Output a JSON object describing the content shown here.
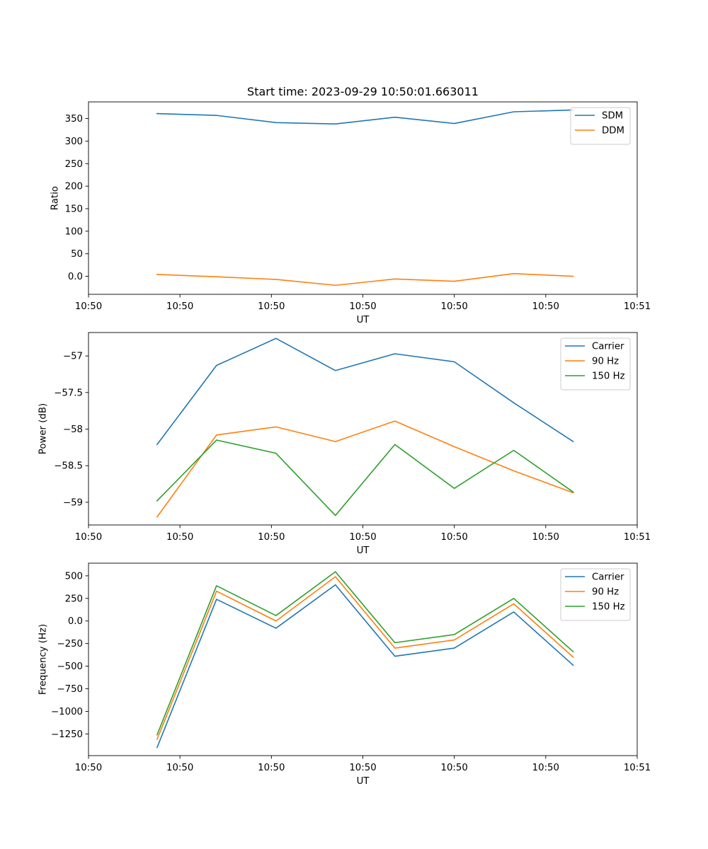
{
  "figure": {
    "title": "Start time: 2023-09-29 10:50:01.663011",
    "background": "#ffffff"
  },
  "chart_data": [
    {
      "type": "line",
      "title": "Start time: 2023-09-29 10:50:01.663011",
      "xlabel": "UT",
      "ylabel": "Ratio",
      "x_tick_labels": [
        "10:50",
        "10:50",
        "10:50",
        "10:50",
        "10:50",
        "10:50",
        "10:51"
      ],
      "x": [
        0.75,
        1.4,
        2.05,
        2.7,
        3.35,
        4.0,
        4.65,
        5.3
      ],
      "xlim": [
        0,
        6
      ],
      "ylim": [
        -40,
        387
      ],
      "yticks": [
        0,
        50,
        100,
        150,
        200,
        250,
        300,
        350
      ],
      "legend_position": "top-right",
      "series": [
        {
          "name": "SDM",
          "color": "#1f77b4",
          "values": [
            361,
            357,
            341,
            338,
            353,
            339,
            365,
            369
          ]
        },
        {
          "name": "DDM",
          "color": "#ff7f0e",
          "values": [
            4,
            -1,
            -7,
            -20,
            -6,
            -11,
            6,
            0
          ]
        }
      ]
    },
    {
      "type": "line",
      "xlabel": "UT",
      "ylabel": "Power (dB)",
      "x_tick_labels": [
        "10:50",
        "10:50",
        "10:50",
        "10:50",
        "10:50",
        "10:50",
        "10:51"
      ],
      "x": [
        0.75,
        1.4,
        2.05,
        2.7,
        3.35,
        4.0,
        4.65,
        5.3
      ],
      "xlim": [
        0,
        6
      ],
      "ylim": [
        -59.31,
        -56.68
      ],
      "yticks": [
        -59.0,
        -58.5,
        -58.0,
        -57.5,
        -57.0
      ],
      "legend_position": "top-right",
      "series": [
        {
          "name": "Carrier",
          "color": "#1f77b4",
          "values": [
            -58.21,
            -57.13,
            -56.76,
            -57.2,
            -56.97,
            -57.08,
            -57.64,
            -58.17
          ]
        },
        {
          "name": "90 Hz",
          "color": "#ff7f0e",
          "values": [
            -59.2,
            -58.08,
            -57.97,
            -58.17,
            -57.89,
            -58.24,
            -58.57,
            -58.87
          ]
        },
        {
          "name": "150 Hz",
          "color": "#2ca02c",
          "values": [
            -58.98,
            -58.15,
            -58.33,
            -59.18,
            -58.21,
            -58.81,
            -58.29,
            -58.86
          ]
        }
      ]
    },
    {
      "type": "line",
      "xlabel": "UT",
      "ylabel": "Frequency (Hz)",
      "x_tick_labels": [
        "10:50",
        "10:50",
        "10:50",
        "10:50",
        "10:50",
        "10:50",
        "10:51"
      ],
      "x": [
        0.75,
        1.4,
        2.05,
        2.7,
        3.35,
        4.0,
        4.65,
        5.3
      ],
      "xlim": [
        0,
        6
      ],
      "ylim": [
        -1490,
        640
      ],
      "yticks": [
        -1250,
        -1000,
        -750,
        -500,
        -250,
        0,
        250,
        500
      ],
      "legend_position": "top-right",
      "series": [
        {
          "name": "Carrier",
          "color": "#1f77b4",
          "values": [
            -1400,
            240,
            -80,
            400,
            -390,
            -300,
            100,
            -490
          ]
        },
        {
          "name": "90 Hz",
          "color": "#ff7f0e",
          "values": [
            -1310,
            330,
            0,
            490,
            -300,
            -210,
            190,
            -400
          ]
        },
        {
          "name": "150 Hz",
          "color": "#2ca02c",
          "values": [
            -1260,
            390,
            60,
            545,
            -240,
            -150,
            250,
            -340
          ]
        }
      ]
    }
  ]
}
